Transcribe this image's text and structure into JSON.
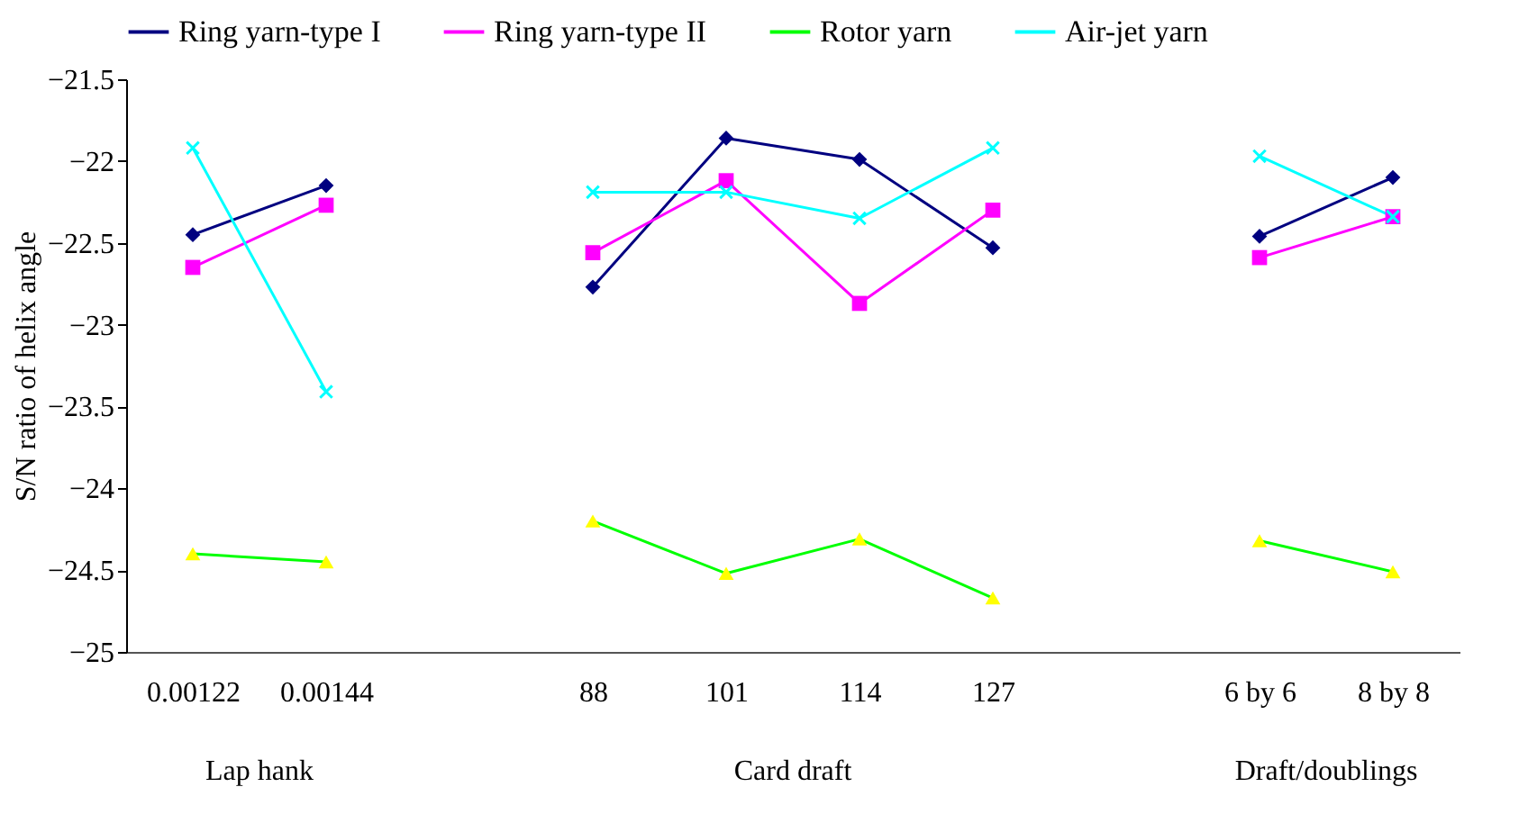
{
  "chart_data": {
    "type": "line",
    "ylabel": "S/N ratio of helix angle",
    "categories": [
      "0.00122",
      "0.00144",
      null,
      "88",
      "101",
      "114",
      "127",
      null,
      "6 by 6",
      "8 by 8"
    ],
    "series": [
      {
        "name": "Ring yarn-type I",
        "color": "#000080",
        "marker": "diamond",
        "values": [
          -22.45,
          -22.15,
          null,
          -22.77,
          -21.86,
          -21.99,
          -22.53,
          null,
          -22.46,
          -22.1
        ]
      },
      {
        "name": "Ring yarn-type II",
        "color": "#ff00ff",
        "marker": "square",
        "values": [
          -22.65,
          -22.27,
          null,
          -22.56,
          -22.12,
          -22.87,
          -22.3,
          null,
          -22.59,
          -22.34
        ]
      },
      {
        "name": "Rotor yarn",
        "color": "#00ff00",
        "colors": [
          "#ffff00",
          "#ffff00",
          null,
          "#ffff00",
          "#ffff00",
          "#ffff00",
          "#ffff00",
          null,
          "#ffff00",
          "#ffff00"
        ],
        "marker": "triangle",
        "values": [
          -24.4,
          -24.45,
          null,
          -24.2,
          -24.52,
          -24.31,
          -24.67,
          null,
          -24.32,
          -24.51
        ]
      },
      {
        "name": "Air-jet yarn",
        "color": "#00ffff",
        "marker": "cross",
        "values": [
          -21.92,
          -23.41,
          null,
          -22.19,
          -22.19,
          -22.35,
          -21.92,
          null,
          -21.97,
          -22.34
        ]
      }
    ],
    "ylim": [
      -25,
      -21.5
    ],
    "yticks": [
      -25,
      -24.5,
      -24,
      -23.5,
      -23,
      -22.5,
      -22,
      -21.5
    ],
    "annotations": [
      "Lap hank",
      "Card draft",
      "Draft/doublings"
    ],
    "grid": false,
    "legend": "top",
    "line_style": "solid"
  }
}
